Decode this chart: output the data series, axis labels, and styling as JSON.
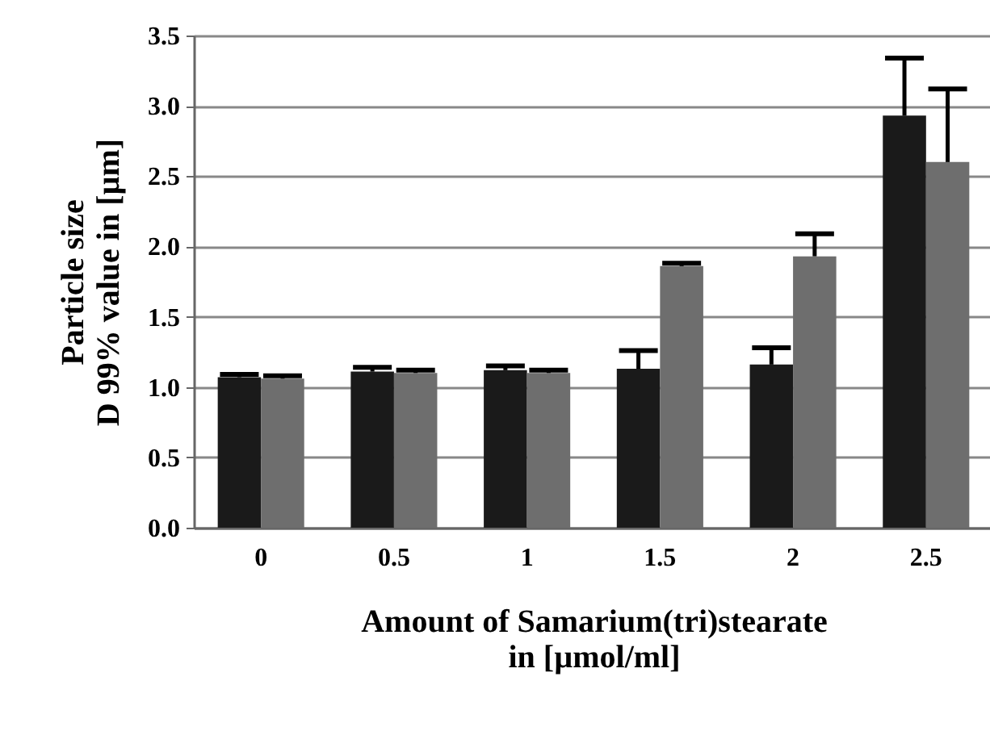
{
  "chart_data": {
    "type": "bar",
    "xlabel": "Amount of Samarium(tri)stearate\nin [µmol/ml]",
    "ylabel": "Particle size\nD 99% value in [µm]",
    "categories": [
      "0",
      "0.5",
      "1",
      "1.5",
      "2",
      "2.5"
    ],
    "series": [
      {
        "color": "#1a1a1a",
        "values": [
          1.07,
          1.11,
          1.12,
          1.13,
          1.16,
          2.93
        ],
        "errors": [
          [
            1.07,
            1.09
          ],
          [
            1.11,
            1.14
          ],
          [
            1.12,
            1.15
          ],
          [
            1.13,
            1.26
          ],
          [
            1.16,
            1.28
          ],
          [
            2.93,
            3.34
          ]
        ]
      },
      {
        "color": "#6e6e6e",
        "values": [
          1.06,
          1.1,
          1.1,
          1.86,
          1.93,
          2.6
        ],
        "errors": [
          [
            1.06,
            1.08
          ],
          [
            1.1,
            1.12
          ],
          [
            1.1,
            1.12
          ],
          [
            1.86,
            1.88
          ],
          [
            1.93,
            2.09
          ],
          [
            2.6,
            3.12
          ]
        ]
      }
    ],
    "ylim": [
      0,
      3.5
    ],
    "yticks": [
      {
        "value": 0,
        "label": "0.0"
      },
      {
        "value": 0.5,
        "label": "0.5"
      },
      {
        "value": 1,
        "label": "1.0"
      },
      {
        "value": 1.5,
        "label": "1.5"
      },
      {
        "value": 2,
        "label": "2.0"
      },
      {
        "value": 2.5,
        "label": "2.5"
      },
      {
        "value": 3,
        "label": "3.0"
      },
      {
        "value": 3.5,
        "label": "3.5"
      }
    ],
    "grid": "y",
    "legend": false
  }
}
